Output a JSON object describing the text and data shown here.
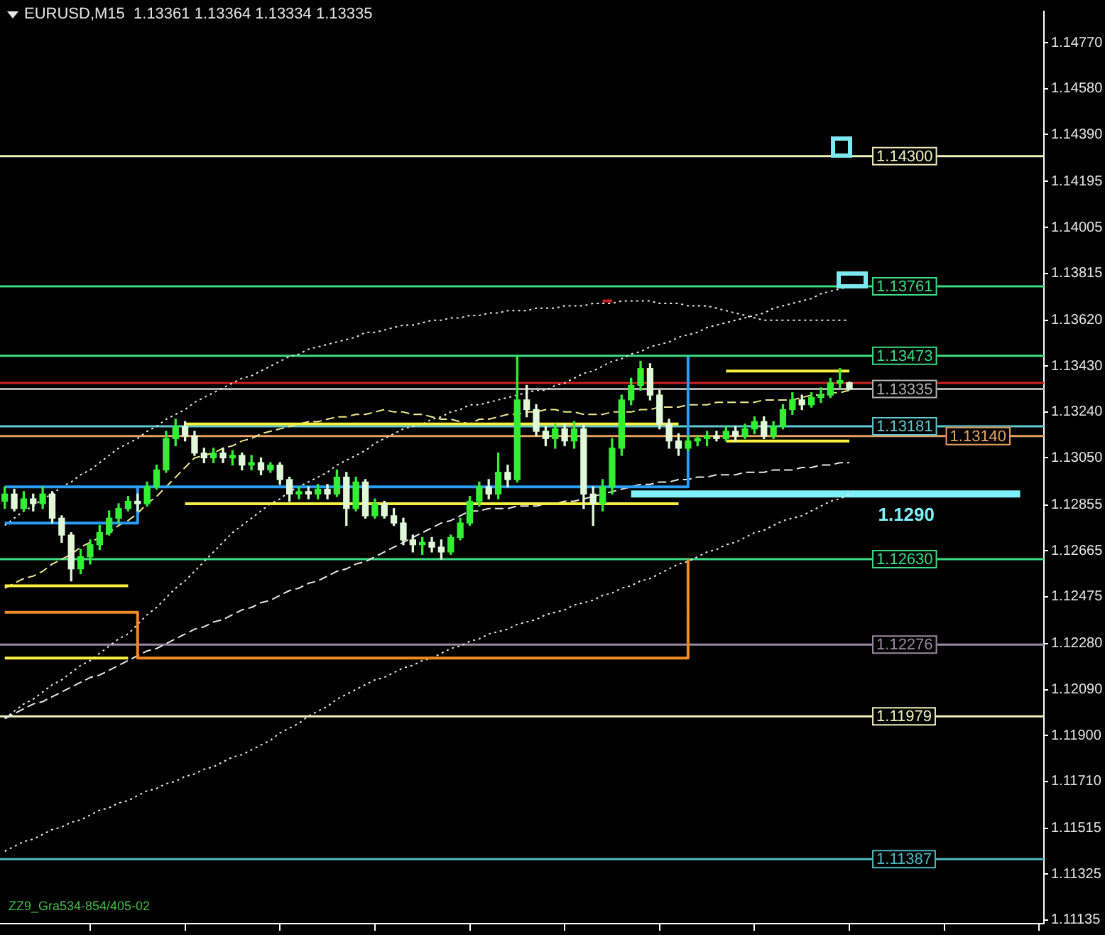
{
  "chart_data": {
    "type": "candlestick",
    "title": "EURUSD,M15  1.13361 1.13364 1.13334 1.13335",
    "categories": [
      null,
      null,
      null,
      null,
      null,
      null,
      null,
      null,
      null,
      null,
      null,
      null,
      null,
      null,
      null,
      null,
      null,
      null,
      null,
      null,
      null,
      null,
      null,
      null,
      null,
      null,
      null,
      null,
      null,
      null,
      null,
      null,
      null,
      null,
      null,
      null,
      null,
      null,
      null,
      null,
      null,
      null,
      null,
      null,
      null,
      null,
      null,
      null,
      null,
      null,
      null,
      null,
      null,
      null,
      null,
      null,
      null,
      null,
      null,
      null,
      null,
      null,
      null,
      null,
      null,
      null,
      null,
      null,
      null,
      null,
      null,
      null,
      null,
      null,
      null,
      null,
      null,
      null,
      null,
      null,
      null,
      null,
      null,
      null,
      null,
      null,
      null,
      null,
      null,
      null,
      null,
      null,
      null,
      null,
      null,
      null,
      null,
      null,
      null,
      null,
      null,
      null,
      null,
      null,
      null,
      null,
      null,
      null,
      null,
      null
    ],
    "ohlc": [
      [
        1.1287,
        1.1293,
        1.1284,
        1.129
      ],
      [
        1.129,
        1.1292,
        1.1283,
        1.1284
      ],
      [
        1.1284,
        1.1291,
        1.1283,
        1.1288
      ],
      [
        1.1288,
        1.129,
        1.1283,
        1.1286
      ],
      [
        1.1286,
        1.1293,
        1.1284,
        1.129
      ],
      [
        1.129,
        1.1291,
        1.1278,
        1.128
      ],
      [
        1.128,
        1.1281,
        1.127,
        1.1273
      ],
      [
        1.1273,
        1.1274,
        1.1254,
        1.1259
      ],
      [
        1.1259,
        1.1267,
        1.1257,
        1.1264
      ],
      [
        1.1264,
        1.1271,
        1.1261,
        1.1269
      ],
      [
        1.1269,
        1.1277,
        1.1267,
        1.1274
      ],
      [
        1.1274,
        1.1283,
        1.1273,
        1.128
      ],
      [
        1.128,
        1.1286,
        1.1278,
        1.1284
      ],
      [
        1.1284,
        1.1289,
        1.1283,
        1.1287
      ],
      [
        1.1287,
        1.129,
        1.1283,
        1.1286
      ],
      [
        1.1286,
        1.1295,
        1.1285,
        1.1293
      ],
      [
        1.1293,
        1.1302,
        1.1292,
        1.13
      ],
      [
        1.13,
        1.1316,
        1.1299,
        1.1313
      ],
      [
        1.1313,
        1.1321,
        1.131,
        1.1318
      ],
      [
        1.1318,
        1.132,
        1.1312,
        1.1314
      ],
      [
        1.1314,
        1.1316,
        1.1306,
        1.1307
      ],
      [
        1.1307,
        1.1309,
        1.1303,
        1.1305
      ],
      [
        1.1305,
        1.1309,
        1.1303,
        1.1307
      ],
      [
        1.1307,
        1.1309,
        1.1303,
        1.1305
      ],
      [
        1.1305,
        1.1308,
        1.1302,
        1.1306
      ],
      [
        1.1306,
        1.1307,
        1.13,
        1.1302
      ],
      [
        1.1302,
        1.1306,
        1.13,
        1.1303
      ],
      [
        1.1303,
        1.1305,
        1.1298,
        1.13
      ],
      [
        1.13,
        1.1303,
        1.1299,
        1.1302
      ],
      [
        1.1302,
        1.1303,
        1.1294,
        1.1296
      ],
      [
        1.1296,
        1.1297,
        1.1287,
        1.129
      ],
      [
        1.129,
        1.1293,
        1.1288,
        1.1291
      ],
      [
        1.1291,
        1.1293,
        1.1288,
        1.129
      ],
      [
        1.129,
        1.1294,
        1.1288,
        1.1292
      ],
      [
        1.1292,
        1.1294,
        1.1288,
        1.129
      ],
      [
        1.129,
        1.13,
        1.1289,
        1.1297
      ],
      [
        1.1297,
        1.1299,
        1.1277,
        1.1284
      ],
      [
        1.1284,
        1.1297,
        1.1283,
        1.1295
      ],
      [
        1.1295,
        1.1296,
        1.128,
        1.1281
      ],
      [
        1.1281,
        1.1288,
        1.128,
        1.1286
      ],
      [
        1.1286,
        1.1287,
        1.128,
        1.1281
      ],
      [
        1.1281,
        1.1284,
        1.1277,
        1.1278
      ],
      [
        1.1278,
        1.128,
        1.1269,
        1.1271
      ],
      [
        1.1271,
        1.1273,
        1.1266,
        1.1269
      ],
      [
        1.1269,
        1.1272,
        1.1265,
        1.127
      ],
      [
        1.127,
        1.1272,
        1.1266,
        1.1268
      ],
      [
        1.1268,
        1.1271,
        1.1263,
        1.1266
      ],
      [
        1.1266,
        1.1273,
        1.1265,
        1.1272
      ],
      [
        1.1272,
        1.128,
        1.1271,
        1.1278
      ],
      [
        1.1278,
        1.1289,
        1.1277,
        1.1287
      ],
      [
        1.1287,
        1.1295,
        1.1285,
        1.1293
      ],
      [
        1.1293,
        1.1296,
        1.1288,
        1.129
      ],
      [
        1.129,
        1.1307,
        1.1288,
        1.1299
      ],
      [
        1.1299,
        1.1302,
        1.1293,
        1.1296
      ],
      [
        1.1296,
        1.1347,
        1.1295,
        1.1329
      ],
      [
        1.1329,
        1.1335,
        1.1322,
        1.1325
      ],
      [
        1.1325,
        1.1327,
        1.1314,
        1.1316
      ],
      [
        1.1316,
        1.1318,
        1.131,
        1.1313
      ],
      [
        1.1313,
        1.1319,
        1.1309,
        1.1317
      ],
      [
        1.1317,
        1.1319,
        1.131,
        1.1312
      ],
      [
        1.1312,
        1.132,
        1.1309,
        1.1317
      ],
      [
        1.1317,
        1.1319,
        1.1284,
        1.129
      ],
      [
        1.129,
        1.1293,
        1.1277,
        1.1286
      ],
      [
        1.1286,
        1.1296,
        1.1283,
        1.1293
      ],
      [
        1.1293,
        1.1313,
        1.129,
        1.1309
      ],
      [
        1.1309,
        1.1331,
        1.1306,
        1.1329
      ],
      [
        1.1329,
        1.1338,
        1.1327,
        1.1335
      ],
      [
        1.1335,
        1.1345,
        1.1333,
        1.1342
      ],
      [
        1.1342,
        1.1344,
        1.1329,
        1.1331
      ],
      [
        1.1331,
        1.1333,
        1.1317,
        1.1319
      ],
      [
        1.1319,
        1.1321,
        1.1309,
        1.1312
      ],
      [
        1.1312,
        1.1315,
        1.1306,
        1.1309
      ],
      [
        1.1309,
        1.1314,
        1.1308,
        1.1312
      ],
      [
        1.1312,
        1.1314,
        1.131,
        1.1313
      ],
      [
        1.1313,
        1.1316,
        1.131,
        1.1314
      ],
      [
        1.1314,
        1.1316,
        1.1312,
        1.1313
      ],
      [
        1.1313,
        1.1318,
        1.1312,
        1.1316
      ],
      [
        1.1316,
        1.1318,
        1.1312,
        1.1314
      ],
      [
        1.1314,
        1.1319,
        1.1313,
        1.1317
      ],
      [
        1.1317,
        1.1322,
        1.1315,
        1.132
      ],
      [
        1.132,
        1.1322,
        1.1313,
        1.1314
      ],
      [
        1.1314,
        1.132,
        1.1313,
        1.1318
      ],
      [
        1.1318,
        1.1327,
        1.1317,
        1.1325
      ],
      [
        1.1325,
        1.1332,
        1.1323,
        1.1329
      ],
      [
        1.1329,
        1.1331,
        1.1325,
        1.1327
      ],
      [
        1.1327,
        1.1332,
        1.1326,
        1.133
      ],
      [
        1.133,
        1.1334,
        1.1328,
        1.1331
      ],
      [
        1.1331,
        1.1338,
        1.133,
        1.1336
      ],
      [
        1.1336,
        1.1342,
        1.1334,
        1.1337
      ],
      [
        1.13361,
        1.13364,
        1.13334,
        1.13335
      ],
      null,
      null,
      null,
      null,
      null,
      null,
      null,
      null,
      null,
      null,
      null,
      null,
      null,
      null,
      null,
      null,
      null,
      null,
      null,
      null
    ],
    "colors": [
      "#33ee33",
      "#e0f8d8",
      "#33ee33",
      "#e0f8d8",
      "#33ee33",
      "#e0f8d8",
      "#e0f8d8",
      "#e0f8d8",
      "#33ee33",
      "#33ee33",
      "#33ee33",
      "#33ee33",
      "#33ee33",
      "#33ee33",
      "#e0f8d8",
      "#33ee33",
      "#33ee33",
      "#33ee33",
      "#33ee33",
      "#e0f8d8",
      "#e0f8d8",
      "#e0f8d8",
      "#33ee33",
      "#e0f8d8",
      "#33ee33",
      "#e0f8d8",
      "#33ee33",
      "#e0f8d8",
      "#33ee33",
      "#e0f8d8",
      "#e0f8d8",
      "#33ee33",
      "#e0f8d8",
      "#33ee33",
      "#e0f8d8",
      "#33ee33",
      "#e0f8d8",
      "#33ee33",
      "#e0f8d8",
      "#33ee33",
      "#e0f8d8",
      "#e0f8d8",
      "#e0f8d8",
      "#e0f8d8",
      "#33ee33",
      "#e0f8d8",
      "#e0f8d8",
      "#33ee33",
      "#33ee33",
      "#33ee33",
      "#33ee33",
      "#e0f8d8",
      "#33ee33",
      "#e0f8d8",
      "#33ee33",
      "#e0f8d8",
      "#e0f8d8",
      "#e0f8d8",
      "#33ee33",
      "#e0f8d8",
      "#33ee33",
      "#e0f8d8",
      "#e0f8d8",
      "#33ee33",
      "#33ee33",
      "#33ee33",
      "#33ee33",
      "#33ee33",
      "#e0f8d8",
      "#e0f8d8",
      "#e0f8d8",
      "#e0f8d8",
      "#33ee33",
      "#33ee33",
      "#33ee33",
      "#e0f8d8",
      "#33ee33",
      "#e0f8d8",
      "#33ee33",
      "#33ee33",
      "#e0f8d8",
      "#33ee33",
      "#33ee33",
      "#33ee33",
      "#e0f8d8",
      "#33ee33",
      "#33ee33",
      "#33ee33",
      "#33ee33",
      "#e0f8d8",
      null,
      null,
      null,
      null,
      null,
      null,
      null,
      null,
      null,
      null,
      null,
      null,
      null,
      null,
      null,
      null,
      null,
      null,
      null,
      null
    ],
    "ylim": [
      1.1112,
      1.149
    ],
    "yticks": [
      1.11135,
      1.11325,
      1.11515,
      {
        "value": 1.1171,
        "label": "1.11710"
      },
      {
        "value": 1.119,
        "label": "1.11900"
      },
      {
        "value": 1.1209,
        "label": "1.12090"
      },
      {
        "value": 1.1228,
        "label": "1.12280"
      },
      1.12475,
      1.12665,
      1.12855,
      {
        "value": 1.1305,
        "label": "1.13050"
      },
      {
        "value": 1.1324,
        "label": "1.13240"
      },
      {
        "value": 1.1343,
        "label": "1.13430"
      },
      {
        "value": 1.1362,
        "label": "1.13620"
      },
      1.13815,
      1.14005,
      1.14195,
      {
        "value": 1.1439,
        "label": "1.14390"
      },
      {
        "value": 1.1458,
        "label": "1.14580"
      },
      {
        "value": 1.1477,
        "label": "1.14770"
      }
    ],
    "tick_labels": "y",
    "ref_lines": [
      {
        "axis": "y",
        "value": 1.143,
        "label": "1.14300",
        "color": "#eeeebb"
      },
      {
        "axis": "y",
        "value": 1.13761,
        "label": "1.13761",
        "color": "#3ddc84"
      },
      {
        "axis": "y",
        "value": 1.13473,
        "label": "1.13473",
        "color": "#3ddc84"
      },
      {
        "axis": "y",
        "value": 1.1336,
        "color": "#d02020"
      },
      {
        "axis": "y",
        "value": 1.13335,
        "label": "1.13335",
        "color": "#b0b0b0"
      },
      {
        "axis": "y",
        "value": 1.13181,
        "label": "1.13181",
        "color": "#60c8d0"
      },
      {
        "axis": "y",
        "value": 1.1314,
        "label": "1.13140",
        "color": "#e8a060"
      },
      {
        "axis": "y",
        "value": 1.1263,
        "label": "1.12630",
        "color": "#3ddc84"
      },
      {
        "axis": "y",
        "value": 1.12276,
        "label": "1.12276",
        "color": "#9a8aa0"
      },
      {
        "axis": "y",
        "value": 1.11979,
        "label": "1.11979",
        "color": "#eeeebb"
      },
      {
        "axis": "y",
        "value": 1.11387,
        "label": "1.11387",
        "color": "#50b8c0"
      }
    ],
    "series": [
      {
        "type": "step",
        "color": "#2a9df4",
        "values": [
          1.1293,
          1.1293,
          1.1293,
          1.1293,
          1.1293,
          1.1293,
          1.1293,
          1.1293,
          1.1293,
          1.1293,
          1.1293,
          1.1293,
          1.1293,
          1.1293,
          1.1293,
          1.1293,
          1.1293,
          1.1293,
          1.1293,
          1.1293,
          1.1293,
          1.1293,
          1.1293,
          1.1293,
          1.1293,
          1.1293,
          1.1293,
          1.1293,
          1.1293,
          1.1293,
          1.1293,
          1.1293,
          1.1293,
          1.1293,
          1.1293,
          1.1293,
          1.1293,
          1.1293,
          1.1293,
          1.1293,
          1.1293,
          1.1293,
          1.1293,
          1.1293,
          1.1293,
          1.1293,
          1.1293,
          1.1293,
          1.1293,
          1.1293,
          1.1293,
          1.1293,
          1.1293,
          1.1293,
          1.1293,
          1.1293,
          1.1293,
          1.1293,
          1.1293,
          1.1293,
          1.1293,
          1.1293,
          1.1293,
          1.1293,
          1.1293,
          1.1293,
          1.1293,
          1.1293,
          1.1293,
          1.1293,
          1.1293,
          1.1293,
          1.1347,
          null,
          null,
          null,
          null,
          null,
          null,
          null,
          null,
          null,
          null,
          null,
          null,
          null,
          null,
          null,
          null,
          null,
          null,
          null,
          null,
          null,
          null,
          null,
          null,
          null,
          null,
          null,
          null,
          null,
          null,
          null,
          null,
          null,
          null,
          null,
          null,
          null
        ]
      },
      {
        "type": "step",
        "color": "#2a9df4",
        "values": [
          1.1278,
          1.1278,
          1.1278,
          1.1278,
          1.1278,
          1.1278,
          1.1278,
          1.1278,
          1.1278,
          1.1278,
          1.1278,
          1.1278,
          1.1278,
          1.1278,
          1.1293,
          null,
          null,
          null,
          null,
          null,
          null,
          null,
          null,
          null,
          null,
          null,
          null,
          null,
          null,
          null,
          null,
          null,
          null,
          null,
          null,
          null,
          null,
          null,
          null,
          null,
          null,
          null,
          null,
          null,
          null,
          null,
          null,
          null,
          null,
          null,
          null,
          null,
          null,
          null,
          null,
          null,
          null,
          null,
          null,
          null,
          null,
          null,
          null,
          null,
          null,
          null,
          null,
          null,
          null,
          null,
          null,
          null,
          null,
          null,
          null,
          null,
          null,
          null,
          null,
          null,
          null,
          null,
          null,
          null,
          null,
          null,
          null,
          null,
          null,
          null,
          null,
          null,
          null,
          null,
          null,
          null,
          null,
          null,
          null,
          null,
          null,
          null,
          null,
          null,
          null,
          null,
          null,
          null,
          null,
          null
        ]
      },
      {
        "type": "step",
        "color": "#f08a24",
        "values": [
          1.1241,
          1.1241,
          1.1241,
          1.1241,
          1.1241,
          1.1241,
          1.1241,
          1.1241,
          1.1241,
          1.1241,
          1.1241,
          1.1241,
          1.1241,
          1.1241,
          1.1222,
          1.1222,
          1.1222,
          1.1222,
          1.1222,
          1.1222,
          1.1222,
          1.1222,
          1.1222,
          1.1222,
          1.1222,
          1.1222,
          1.1222,
          1.1222,
          1.1222,
          1.1222,
          1.1222,
          1.1222,
          1.1222,
          1.1222,
          1.1222,
          1.1222,
          1.1222,
          1.1222,
          1.1222,
          1.1222,
          1.1222,
          1.1222,
          1.1222,
          1.1222,
          1.1222,
          1.1222,
          1.1222,
          1.1222,
          1.1222,
          1.1222,
          1.1222,
          1.1222,
          1.1222,
          1.1222,
          1.1222,
          1.1222,
          1.1222,
          1.1222,
          1.1222,
          1.1222,
          1.1222,
          1.1222,
          1.1222,
          1.1222,
          1.1222,
          1.1222,
          1.1222,
          1.1222,
          1.1222,
          1.1222,
          1.1222,
          1.1222,
          1.1263,
          null,
          null,
          null,
          null,
          null,
          null,
          null,
          null,
          null,
          null,
          null,
          null,
          null,
          null,
          null,
          null,
          null,
          null,
          null,
          null,
          null,
          null,
          null,
          null,
          null,
          null,
          null,
          null,
          null,
          null,
          null,
          null,
          null,
          null,
          null,
          null,
          null
        ]
      },
      {
        "type": "line",
        "color": "#f8f040",
        "values": [
          1.1252,
          1.1252,
          1.1252,
          1.1252,
          1.1252,
          1.1252,
          1.1252,
          1.1252,
          1.1252,
          1.1252,
          1.1252,
          1.1252,
          1.1252,
          1.1252,
          null,
          null,
          null,
          null,
          null,
          1.1319,
          1.1319,
          1.1319,
          1.1319,
          1.1319,
          1.1319,
          1.1319,
          1.1319,
          1.1319,
          1.1319,
          1.1319,
          1.1319,
          1.1319,
          1.1319,
          1.1319,
          1.1319,
          1.1319,
          1.1319,
          1.1319,
          1.1319,
          1.1319,
          1.1319,
          1.1319,
          1.1319,
          1.1319,
          1.1319,
          1.1319,
          1.1319,
          1.1319,
          1.1319,
          1.1319,
          1.1319,
          1.1319,
          1.1319,
          1.1319,
          1.1319,
          1.1319,
          1.1319,
          1.1319,
          1.1319,
          1.1319,
          1.1319,
          1.1319,
          1.1319,
          1.1319,
          1.1319,
          1.1319,
          1.1319,
          1.1319,
          1.1319,
          1.1319,
          1.1319,
          1.1319,
          null,
          null,
          null,
          null,
          1.1341,
          1.1341,
          1.1341,
          1.1341,
          1.1341,
          1.1341,
          1.1341,
          1.1341,
          1.1341,
          1.1341,
          1.1341,
          1.1341,
          1.1341,
          1.1341,
          null,
          null,
          null,
          null,
          null,
          null,
          null,
          null,
          null,
          null,
          null,
          null,
          null,
          null,
          null,
          null,
          null,
          null,
          null,
          null
        ]
      },
      {
        "type": "line",
        "color": "#f8f040",
        "values": [
          1.1222,
          1.1222,
          1.1222,
          1.1222,
          1.1222,
          1.1222,
          1.1222,
          1.1222,
          1.1222,
          1.1222,
          1.1222,
          1.1222,
          1.1222,
          1.1222,
          null,
          null,
          null,
          null,
          null,
          1.1286,
          1.1286,
          1.1286,
          1.1286,
          1.1286,
          1.1286,
          1.1286,
          1.1286,
          1.1286,
          1.1286,
          1.1286,
          1.1286,
          1.1286,
          1.1286,
          1.1286,
          1.1286,
          1.1286,
          1.1286,
          1.1286,
          1.1286,
          1.1286,
          1.1286,
          1.1286,
          1.1286,
          1.1286,
          1.1286,
          1.1286,
          1.1286,
          1.1286,
          1.1286,
          1.1286,
          1.1286,
          1.1286,
          1.1286,
          1.1286,
          1.1286,
          1.1286,
          1.1286,
          1.1286,
          1.1286,
          1.1286,
          1.1286,
          1.1286,
          1.1286,
          1.1286,
          1.1286,
          1.1286,
          1.1286,
          1.1286,
          1.1286,
          1.1286,
          1.1286,
          1.1286,
          null,
          null,
          null,
          null,
          1.1312,
          1.1312,
          1.1312,
          1.1312,
          1.1312,
          1.1312,
          1.1312,
          1.1312,
          1.1312,
          1.1312,
          1.1312,
          1.1312,
          1.1312,
          1.1312,
          null,
          null,
          null,
          null,
          null,
          null,
          null,
          null,
          null,
          null,
          null,
          null,
          null,
          null,
          null,
          null,
          null,
          null,
          null,
          null
        ]
      },
      {
        "type": "line",
        "color": "#e8e8e8",
        "line_style": "dotted",
        "values": [
          1.1277,
          1.128,
          1.1283,
          1.1285,
          1.1288,
          1.129,
          1.1293,
          1.1295,
          1.1298,
          1.13,
          1.1303,
          1.1306,
          1.1309,
          1.1311,
          1.1313,
          1.1316,
          1.1318,
          1.1321,
          1.1323,
          1.1325,
          1.1328,
          1.133,
          1.1332,
          1.1334,
          1.1336,
          1.1338,
          1.1339,
          1.1341,
          1.1343,
          1.1345,
          1.1347,
          1.1348,
          1.135,
          1.1351,
          1.1352,
          1.1353,
          1.1354,
          1.1355,
          1.1357,
          1.1357,
          1.1358,
          1.1359,
          1.136,
          1.136,
          1.1361,
          1.1362,
          1.1362,
          1.1363,
          1.1363,
          1.1364,
          1.1364,
          1.1365,
          1.1365,
          1.1366,
          1.1366,
          1.1366,
          1.1367,
          1.1367,
          1.1367,
          1.1368,
          1.1368,
          1.1368,
          1.1369,
          1.1369,
          1.1369,
          1.137,
          1.137,
          1.137,
          1.137,
          1.1369,
          1.1369,
          1.1369,
          1.1368,
          1.1368,
          1.1368,
          1.1367,
          1.1366,
          1.1365,
          1.1364,
          1.1363,
          1.1362,
          1.1362,
          1.1362,
          1.1362,
          1.1362,
          1.1362,
          1.1362,
          1.1362,
          1.1362,
          1.1362,
          null,
          null,
          null,
          null,
          null,
          null,
          null,
          null,
          null,
          null,
          null,
          null,
          null,
          null,
          null,
          null,
          null,
          null,
          null,
          null
        ]
      },
      {
        "type": "line",
        "color": "#e8e8e8",
        "line_style": "dotted",
        "values": [
          1.1142,
          1.1144,
          1.1146,
          1.1147,
          1.1149,
          1.1151,
          1.1152,
          1.1154,
          1.1155,
          1.1157,
          1.1159,
          1.116,
          1.1162,
          1.1163,
          1.1165,
          1.1167,
          1.1168,
          1.117,
          1.1171,
          1.1173,
          1.1174,
          1.1176,
          1.1177,
          1.1179,
          1.1181,
          1.1182,
          1.1184,
          1.1186,
          1.1188,
          1.1191,
          1.1193,
          1.1195,
          1.1198,
          1.12,
          1.1202,
          1.1205,
          1.1207,
          1.1209,
          1.1211,
          1.1213,
          1.1214,
          1.1216,
          1.1218,
          1.1219,
          1.1221,
          1.1222,
          1.1224,
          1.1226,
          1.1227,
          1.1229,
          1.123,
          1.1232,
          1.1233,
          1.1234,
          1.1236,
          1.1237,
          1.1238,
          1.124,
          1.1241,
          1.1242,
          1.1244,
          1.1245,
          1.1246,
          1.1248,
          1.1249,
          1.1251,
          1.1252,
          1.1254,
          1.1255,
          1.1257,
          1.1259,
          1.1261,
          1.1262,
          1.1264,
          1.1266,
          1.1267,
          1.1269,
          1.127,
          1.1272,
          1.1274,
          1.1275,
          1.1277,
          1.1279,
          1.128,
          1.1281,
          1.1283,
          1.1285,
          1.1287,
          1.1288,
          1.129,
          null,
          null,
          null,
          null,
          null,
          null,
          null,
          null,
          null,
          null,
          null,
          null,
          null,
          null,
          null,
          null,
          null,
          null,
          null,
          null
        ]
      },
      {
        "type": "line",
        "color": "#e8e8e8",
        "line_style": "dashed",
        "values": [
          1.1197,
          1.1199,
          1.1201,
          1.1203,
          1.1204,
          1.1206,
          1.1208,
          1.121,
          1.1212,
          1.1214,
          1.1215,
          1.1217,
          1.1219,
          1.1221,
          1.1223,
          1.1225,
          1.1226,
          1.1228,
          1.123,
          1.1232,
          1.1234,
          1.1235,
          1.1237,
          1.1238,
          1.124,
          1.1242,
          1.1243,
          1.1245,
          1.1246,
          1.1248,
          1.125,
          1.1251,
          1.1253,
          1.1254,
          1.1256,
          1.1258,
          1.1259,
          1.1261,
          1.1262,
          1.1264,
          1.1266,
          1.1268,
          1.127,
          1.1272,
          1.1274,
          1.1276,
          1.1278,
          1.1279,
          1.1281,
          1.1283,
          1.1283,
          1.1284,
          1.1284,
          1.1284,
          1.1285,
          1.1285,
          1.1285,
          1.1286,
          1.1286,
          1.1287,
          1.1287,
          1.1288,
          1.1289,
          1.129,
          1.1291,
          1.1292,
          1.1293,
          1.1294,
          1.1294,
          1.1295,
          1.1295,
          1.1296,
          1.1296,
          1.1297,
          1.1297,
          1.1298,
          1.1298,
          1.1298,
          1.1299,
          1.1299,
          1.1299,
          1.13,
          1.13,
          1.13,
          1.1301,
          1.1301,
          1.1302,
          1.1302,
          1.1303,
          1.1303,
          null,
          null,
          null,
          null,
          null,
          null,
          null,
          null,
          null,
          null,
          null,
          null,
          null,
          null,
          null,
          null,
          null,
          null,
          null,
          null
        ]
      },
      {
        "type": "line",
        "color": "#e8e8e8",
        "line_style": "dotted",
        "values": [
          1.1197,
          1.12,
          1.1203,
          1.1205,
          1.1208,
          1.1211,
          1.1213,
          1.1216,
          1.1219,
          1.1221,
          1.1224,
          1.1227,
          1.123,
          1.1232,
          1.1236,
          1.124,
          1.1243,
          1.1247,
          1.1251,
          1.1254,
          1.1258,
          1.1262,
          1.1266,
          1.127,
          1.1274,
          1.1277,
          1.128,
          1.1283,
          1.1286,
          1.1288,
          1.1291,
          1.1293,
          1.1295,
          1.1297,
          1.1299,
          1.1302,
          1.1304,
          1.1306,
          1.1308,
          1.1311,
          1.1313,
          1.1315,
          1.1317,
          1.1318,
          1.1319,
          1.1321,
          1.1322,
          1.1324,
          1.1325,
          1.1327,
          1.1327,
          1.1328,
          1.1329,
          1.133,
          1.1331,
          1.1332,
          1.1333,
          1.1333,
          1.1335,
          1.1336,
          1.1338,
          1.134,
          1.1341,
          1.1343,
          1.1345,
          1.1346,
          1.1348,
          1.1349,
          1.1351,
          1.1352,
          1.1353,
          1.1355,
          1.1356,
          1.1357,
          1.1359,
          1.136,
          1.1361,
          1.1362,
          1.1363,
          1.1364,
          1.1365,
          1.1367,
          1.1368,
          1.1369,
          1.137,
          1.1371,
          1.1373,
          1.1374,
          1.1375,
          1.1376,
          null,
          null,
          null,
          null,
          null,
          null,
          null,
          null,
          null,
          null,
          null,
          null,
          null,
          null,
          null,
          null,
          null,
          null,
          null,
          null
        ]
      },
      {
        "type": "line",
        "color": "#f0e890",
        "line_style": "dashed",
        "values": [
          1.1251,
          1.1253,
          1.1255,
          1.1256,
          1.1258,
          1.1261,
          1.1263,
          1.1265,
          1.1268,
          1.127,
          1.1272,
          1.1274,
          1.1277,
          1.1279,
          1.1282,
          1.1286,
          1.1289,
          1.1293,
          1.1297,
          1.1301,
          1.1305,
          1.1306,
          1.1307,
          1.1309,
          1.131,
          1.1312,
          1.1313,
          1.1315,
          1.1316,
          1.1317,
          1.1318,
          1.1319,
          1.132,
          1.132,
          1.1321,
          1.1322,
          1.1322,
          1.1323,
          1.1323,
          1.1324,
          1.1325,
          1.1324,
          1.1324,
          1.1323,
          1.1323,
          1.1322,
          1.1321,
          1.1321,
          1.132,
          1.1319,
          1.1321,
          1.1321,
          1.1322,
          1.1323,
          1.1323,
          1.1324,
          1.1324,
          1.1325,
          1.1325,
          1.1324,
          1.1324,
          1.1323,
          1.1323,
          1.1323,
          1.1324,
          1.1324,
          1.1324,
          1.1325,
          1.1325,
          1.1326,
          1.1326,
          1.1326,
          1.1327,
          1.1327,
          1.1327,
          1.1328,
          1.1328,
          1.1328,
          1.1328,
          1.1328,
          1.1329,
          1.1329,
          1.1329,
          1.1329,
          1.133,
          1.1331,
          1.1331,
          1.1332,
          1.1332,
          1.1333,
          null,
          null,
          null,
          null,
          null,
          null,
          null,
          null,
          null,
          null,
          null,
          null,
          null,
          null,
          null,
          null,
          null,
          null,
          null,
          null
        ]
      },
      {
        "type": "line",
        "color": "#cc2020",
        "values": [
          null,
          null,
          null,
          null,
          null,
          null,
          null,
          null,
          null,
          null,
          null,
          null,
          null,
          null,
          null,
          null,
          null,
          null,
          null,
          null,
          null,
          null,
          null,
          null,
          null,
          null,
          null,
          null,
          null,
          null,
          null,
          null,
          null,
          null,
          null,
          null,
          null,
          null,
          null,
          null,
          null,
          null,
          null,
          null,
          null,
          null,
          null,
          null,
          null,
          null,
          null,
          null,
          null,
          null,
          null,
          null,
          null,
          null,
          null,
          null,
          null,
          null,
          null,
          1.137,
          1.137,
          null,
          null,
          null,
          null,
          null,
          null,
          null,
          null,
          null,
          null,
          null,
          null,
          null,
          null,
          null,
          null,
          null,
          null,
          null,
          null,
          null,
          null,
          null,
          null,
          null,
          null,
          null,
          null,
          null,
          null,
          null,
          null,
          null,
          null,
          null,
          null,
          null,
          null,
          null,
          null,
          null,
          null,
          null,
          null,
          null
        ]
      },
      {
        "type": "line",
        "name": "1.1290",
        "color": "#80f0f8",
        "values": [
          null,
          null,
          null,
          null,
          null,
          null,
          null,
          null,
          null,
          null,
          null,
          null,
          null,
          null,
          null,
          null,
          null,
          null,
          null,
          null,
          null,
          null,
          null,
          null,
          null,
          null,
          null,
          null,
          null,
          null,
          null,
          null,
          null,
          null,
          null,
          null,
          null,
          null,
          null,
          null,
          null,
          null,
          null,
          null,
          null,
          null,
          null,
          null,
          null,
          null,
          null,
          null,
          null,
          null,
          null,
          null,
          null,
          null,
          null,
          null,
          null,
          null,
          null,
          null,
          null,
          null,
          1.129,
          1.129,
          1.129,
          1.129,
          1.129,
          1.129,
          1.129,
          1.129,
          1.129,
          1.129,
          1.129,
          1.129,
          1.129,
          1.129,
          1.129,
          1.129,
          1.129,
          1.129,
          1.129,
          1.129,
          1.129,
          1.129,
          1.129,
          1.129,
          1.129,
          1.129,
          1.129,
          1.129,
          1.129,
          1.129,
          1.129,
          1.129,
          1.129,
          1.129,
          1.129,
          1.129,
          1.129,
          1.129,
          1.129,
          1.129,
          1.129,
          1.129,
          null,
          null
        ]
      }
    ],
    "annotations": [
      "ZZ9_Gra534-854/405-02"
    ]
  }
}
